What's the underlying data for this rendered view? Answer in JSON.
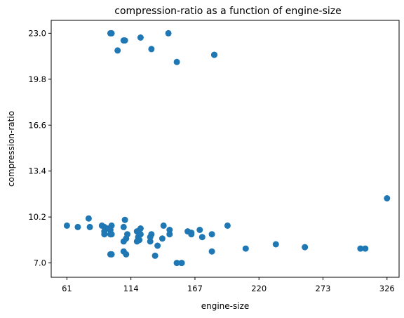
{
  "chart_data": {
    "type": "scatter",
    "title": "compression-ratio as a function of engine-size",
    "xlabel": "engine-size",
    "ylabel": "compression-ratio",
    "xlim": [
      48,
      336
    ],
    "ylim": [
      6.0,
      23.9
    ],
    "xticks": [
      61,
      114,
      167,
      220,
      273,
      326
    ],
    "xtick_labels": [
      "61",
      "114",
      "167",
      "220",
      "273",
      "326"
    ],
    "yticks": [
      7.0,
      10.2,
      13.4,
      16.6,
      19.8,
      23.0
    ],
    "ytick_labels": [
      "7.0",
      "10.2",
      "13.4",
      "16.6",
      "19.8",
      "23.0"
    ],
    "grid": false,
    "marker_color": "#1f77b4",
    "series": [
      {
        "x": [
          97,
          98,
          103,
          108,
          109,
          122,
          145,
          131,
          152,
          183,
          183,
          61,
          70,
          79,
          80,
          90,
          92,
          92,
          95,
          97,
          98,
          98,
          92,
          97,
          108,
          109,
          110,
          111,
          108,
          97,
          98,
          108,
          110,
          122,
          119,
          120,
          121,
          122,
          120,
          119,
          131,
          141,
          146,
          130,
          130,
          136,
          140,
          134,
          156,
          156,
          152,
          181,
          181,
          146,
          164,
          164,
          161,
          171,
          173,
          194,
          209,
          234,
          258,
          304,
          308,
          326
        ],
        "y": [
          23.0,
          23.0,
          21.8,
          22.5,
          22.5,
          22.7,
          23.0,
          21.9,
          21.0,
          21.5,
          21.5,
          9.6,
          9.5,
          10.1,
          9.5,
          9.6,
          9.5,
          9.0,
          9.4,
          9.3,
          9.6,
          9.0,
          9.2,
          9.0,
          9.5,
          10.0,
          8.7,
          9.0,
          8.5,
          7.6,
          7.6,
          7.8,
          7.6,
          9.4,
          9.2,
          8.8,
          8.6,
          9.0,
          8.6,
          8.5,
          9.0,
          9.6,
          9.3,
          8.8,
          8.5,
          8.2,
          8.7,
          7.5,
          7.0,
          7.0,
          7.0,
          9.0,
          7.8,
          9.0,
          9.1,
          9.0,
          9.2,
          9.3,
          8.8,
          9.6,
          8.0,
          8.3,
          8.1,
          8.0,
          8.0,
          11.5
        ]
      }
    ]
  }
}
